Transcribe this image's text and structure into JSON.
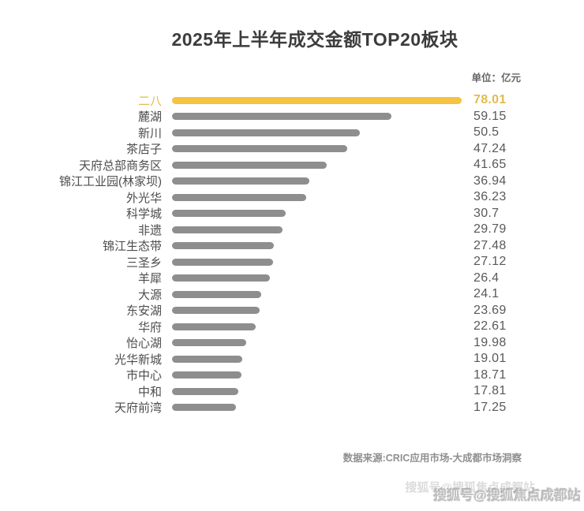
{
  "page": {
    "title": "2025年上半年成交金额TOP20板块",
    "unit_label": "单位：亿元",
    "source": "数据来源:CRIC应用市场-大成都市场洞察",
    "watermark": "搜狐号@搜狐焦点成都站",
    "watermark_ghost": "搜狐号@搜狐焦点成都站"
  },
  "colors": {
    "highlight_bar": "#F5C342",
    "highlight_text": "#E2BB4F",
    "bar_gray": "#8E8E8E",
    "label_text": "#4D4D4D",
    "value_text": "#595959"
  },
  "chart_data": {
    "type": "bar",
    "orientation": "horizontal",
    "title": "2025年上半年成交金额TOP20板块",
    "unit": "亿元",
    "grid": false,
    "legend": "none",
    "xlim": [
      0,
      78.01
    ],
    "highlight_index": 0,
    "categories": [
      "二八",
      "麓湖",
      "新川",
      "茶店子",
      "天府总部商务区",
      "锦江工业园(林家坝)",
      "外光华",
      "科学城",
      "非遗",
      "锦江生态带",
      "三圣乡",
      "羊犀",
      "大源",
      "东安湖",
      "华府",
      "怡心湖",
      "光华新城",
      "市中心",
      "中和",
      "天府前湾"
    ],
    "values": [
      78.01,
      59.15,
      50.5,
      47.24,
      41.65,
      36.94,
      36.23,
      30.7,
      29.79,
      27.48,
      27.12,
      26.4,
      24.1,
      23.69,
      22.61,
      19.98,
      19.01,
      18.71,
      17.81,
      17.25
    ],
    "value_labels": [
      "78.01",
      "59.15",
      "50.5",
      "47.24",
      "41.65",
      "36.94",
      "36.23",
      "30.7",
      "29.79",
      "27.48",
      "27.12",
      "26.4",
      "24.1",
      "23.69",
      "22.61",
      "19.98",
      "19.01",
      "18.71",
      "17.81",
      "17.25"
    ]
  }
}
